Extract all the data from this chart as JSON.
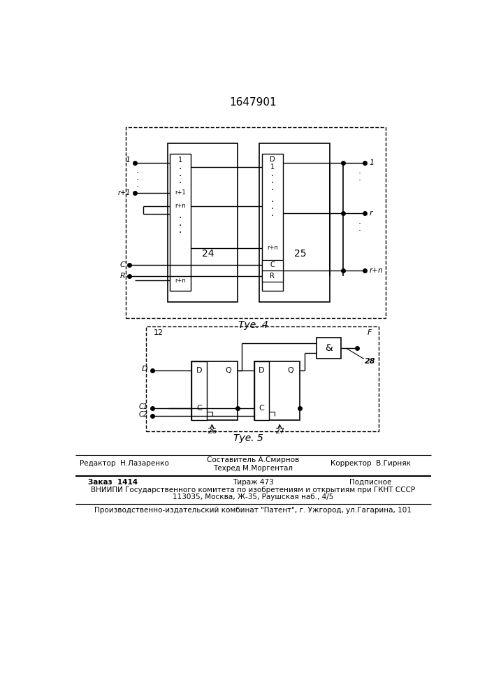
{
  "title": "1647901",
  "fig4_caption": "Τуе. 4",
  "fig5_caption": "Τуе. 5",
  "footer_editor": "Редактор  Н.Лазаренко",
  "footer_comp": "Составитель А.Смирнов",
  "footer_tech": "Техред М.Моргентал",
  "footer_corr": "Корректор  В.Гирняк",
  "footer_order": "Заказ  1414",
  "footer_copies": "Тираж 473",
  "footer_sub": "Подписное",
  "footer_vniip": "ВНИИПИ Государственного комитета по изобретениям и открытиям при ГКНТ СССР",
  "footer_addr": "113035, Москва, Ж-35, Раушская наб., 4/5",
  "footer_prod": "Производственно-издательский комбинат \"Патент\", г. Ужгород, ул.Гагарина, 101"
}
